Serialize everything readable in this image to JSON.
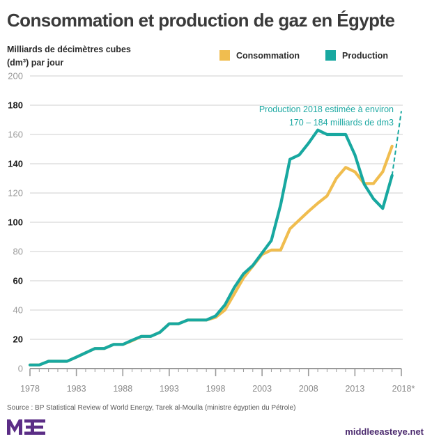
{
  "header": {
    "title": "Consommation et production de gaz en Égypte",
    "unit_line1": "Milliards de décimètres cubes",
    "unit_line2": "(dm³) par jour"
  },
  "legend": [
    {
      "label": "Consommation",
      "color": "#f0bd4f"
    },
    {
      "label": "Production",
      "color": "#18a8a0"
    }
  ],
  "chart_data": {
    "type": "line",
    "title": "Consommation et production de gaz en Égypte",
    "ylabel": "Milliards de décimètres cubes (dm³) par jour",
    "xlabel": "",
    "ylim": [
      0,
      200
    ],
    "xlim": [
      1978,
      2018
    ],
    "yticks": [
      0,
      20,
      40,
      60,
      80,
      100,
      120,
      140,
      160,
      180,
      200
    ],
    "yticks_bold": [
      20,
      60,
      100,
      140,
      180
    ],
    "xticks": [
      "1978",
      "1983",
      "1988",
      "1993",
      "1998",
      "2003",
      "2008",
      "2013",
      "2018*"
    ],
    "grid": true,
    "legend_position": "top-right",
    "x": [
      1978,
      1979,
      1980,
      1981,
      1982,
      1983,
      1984,
      1985,
      1986,
      1987,
      1988,
      1989,
      1990,
      1991,
      1992,
      1993,
      1994,
      1995,
      1996,
      1997,
      1998,
      1999,
      2000,
      2001,
      2002,
      2003,
      2004,
      2005,
      2006,
      2007,
      2008,
      2009,
      2010,
      2011,
      2012,
      2013,
      2014,
      2015,
      2016,
      2017
    ],
    "series": [
      {
        "name": "Consommation",
        "color": "#f0bd4f",
        "values": [
          2.5,
          2.5,
          5,
          5,
          5,
          7.8,
          10.8,
          13.7,
          13.7,
          16.5,
          16.5,
          19,
          22,
          22,
          24.8,
          30.6,
          30.6,
          33.2,
          33.2,
          33.2,
          35,
          40,
          51,
          62,
          70,
          78,
          81,
          81,
          95.5,
          101.5,
          107.5,
          113,
          118,
          130,
          137.5,
          134.5,
          126.5,
          126.5,
          134.5,
          152
        ]
      },
      {
        "name": "Production",
        "color": "#18a8a0",
        "values": [
          2.5,
          2.5,
          5,
          5,
          5,
          7.8,
          10.8,
          13.7,
          13.7,
          16.5,
          16.5,
          19.4,
          22,
          22,
          24.8,
          30.6,
          30.6,
          33.2,
          33.2,
          33.2,
          36,
          43.5,
          55.4,
          64.8,
          70.5,
          79,
          87.5,
          112,
          143,
          146,
          154,
          163,
          160,
          160,
          160,
          146,
          126,
          116,
          109.5,
          132
        ]
      },
      {
        "name": "Production (estimation 2018)",
        "color": "#18a8a0",
        "dashed": true,
        "x": [
          2017,
          2018
        ],
        "values": [
          132,
          176
        ]
      }
    ],
    "annotations": [
      {
        "text_line1": "Production 2018 estimée à environ",
        "text_line2": "170 – 184 milliards de dm3",
        "x": 2018
      }
    ]
  },
  "footer": {
    "source": "Source : BP Statistical Review of World Energy, Tarek al-Moulla (ministre égyptien du Pétrole)",
    "logo_text": "MEE",
    "site": "middleeasteye.net",
    "brand_color": "#5b2d86"
  }
}
